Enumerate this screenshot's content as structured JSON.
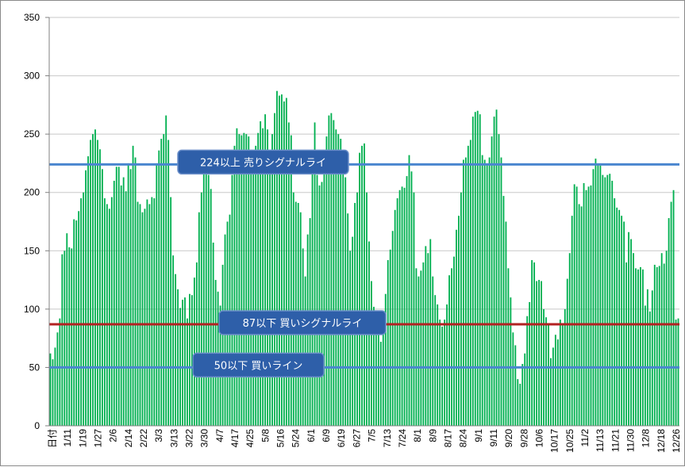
{
  "chart_data": {
    "type": "bar",
    "ylim": [
      0,
      350
    ],
    "yticks": [
      0,
      50,
      100,
      150,
      200,
      250,
      300,
      350
    ],
    "grid": true,
    "bar_color": "#00b050",
    "x_tick_labels": [
      "日付",
      "1/11",
      "1/19",
      "1/27",
      "2/6",
      "2/14",
      "2/22",
      "3/3",
      "3/13",
      "3/22",
      "3/30",
      "4/7",
      "4/17",
      "4/25",
      "5/8",
      "5/16",
      "5/24",
      "6/1",
      "6/9",
      "6/19",
      "6/27",
      "7/5",
      "7/13",
      "7/24",
      "8/1",
      "8/9",
      "8/17",
      "8/24",
      "9/1",
      "9/11",
      "9/20",
      "9/28",
      "10/6",
      "10/17",
      "10/25",
      "11/2",
      "11/13",
      "11/21",
      "11/30",
      "12/8",
      "12/18",
      "12/26"
    ],
    "values": [
      62,
      57,
      67,
      80,
      92,
      147,
      150,
      165,
      153,
      152,
      177,
      176,
      184,
      195,
      200,
      219,
      231,
      245,
      250,
      254,
      245,
      237,
      220,
      195,
      190,
      186,
      196,
      210,
      222,
      222,
      206,
      213,
      201,
      225,
      220,
      240,
      230,
      192,
      190,
      183,
      186,
      194,
      190,
      196,
      195,
      225,
      236,
      246,
      250,
      266,
      245,
      196,
      146,
      130,
      117,
      101,
      108,
      110,
      92,
      113,
      112,
      127,
      140,
      183,
      200,
      230,
      222,
      215,
      203,
      157,
      125,
      115,
      103,
      138,
      164,
      175,
      181,
      215,
      240,
      255,
      250,
      249,
      251,
      250,
      248,
      217,
      232,
      240,
      251,
      261,
      255,
      267,
      254,
      235,
      250,
      268,
      287,
      283,
      284,
      278,
      281,
      260,
      249,
      200,
      192,
      191,
      183,
      152,
      128,
      164,
      178,
      222,
      260,
      215,
      206,
      209,
      235,
      248,
      266,
      268,
      262,
      254,
      250,
      246,
      228,
      213,
      182,
      150,
      162,
      191,
      200,
      234,
      240,
      242,
      200,
      158,
      124,
      102,
      88,
      81,
      72,
      79,
      113,
      142,
      151,
      167,
      185,
      195,
      202,
      205,
      204,
      214,
      232,
      218,
      200,
      135,
      128,
      133,
      140,
      154,
      148,
      160,
      128,
      112,
      104,
      91,
      85,
      91,
      104,
      129,
      135,
      145,
      168,
      180,
      200,
      228,
      230,
      240,
      245,
      265,
      269,
      270,
      267,
      232,
      228,
      224,
      230,
      248,
      265,
      271,
      250,
      230,
      197,
      175,
      135,
      110,
      80,
      69,
      40,
      36,
      53,
      62,
      94,
      106,
      142,
      140,
      124,
      125,
      124,
      100,
      93,
      87,
      58,
      67,
      78,
      74,
      91,
      88,
      100,
      126,
      148,
      180,
      207,
      205,
      190,
      188,
      208,
      202,
      205,
      206,
      220,
      229,
      224,
      223,
      215,
      213,
      215,
      216,
      210,
      195,
      187,
      185,
      180,
      175,
      140,
      166,
      160,
      148,
      135,
      134,
      136,
      134,
      103,
      117,
      98,
      116,
      138,
      136,
      137,
      148,
      139,
      150,
      178,
      192,
      202,
      91,
      92
    ]
  },
  "annotations": [
    {
      "text": "224以上  売りシグナルライ",
      "value": 224,
      "line_color": "#4a86cf"
    },
    {
      "text": "87以下  買いシグナルライ",
      "value": 87,
      "line_color": "#b22222"
    },
    {
      "text": "50以下  買いライン",
      "value": 50,
      "line_color": "#4a86cf"
    }
  ],
  "colors": {
    "box_fill": "#2e5fa9",
    "box_border": "#6b8fc9",
    "axis": "#808080",
    "grid": "#c8c8c8"
  }
}
